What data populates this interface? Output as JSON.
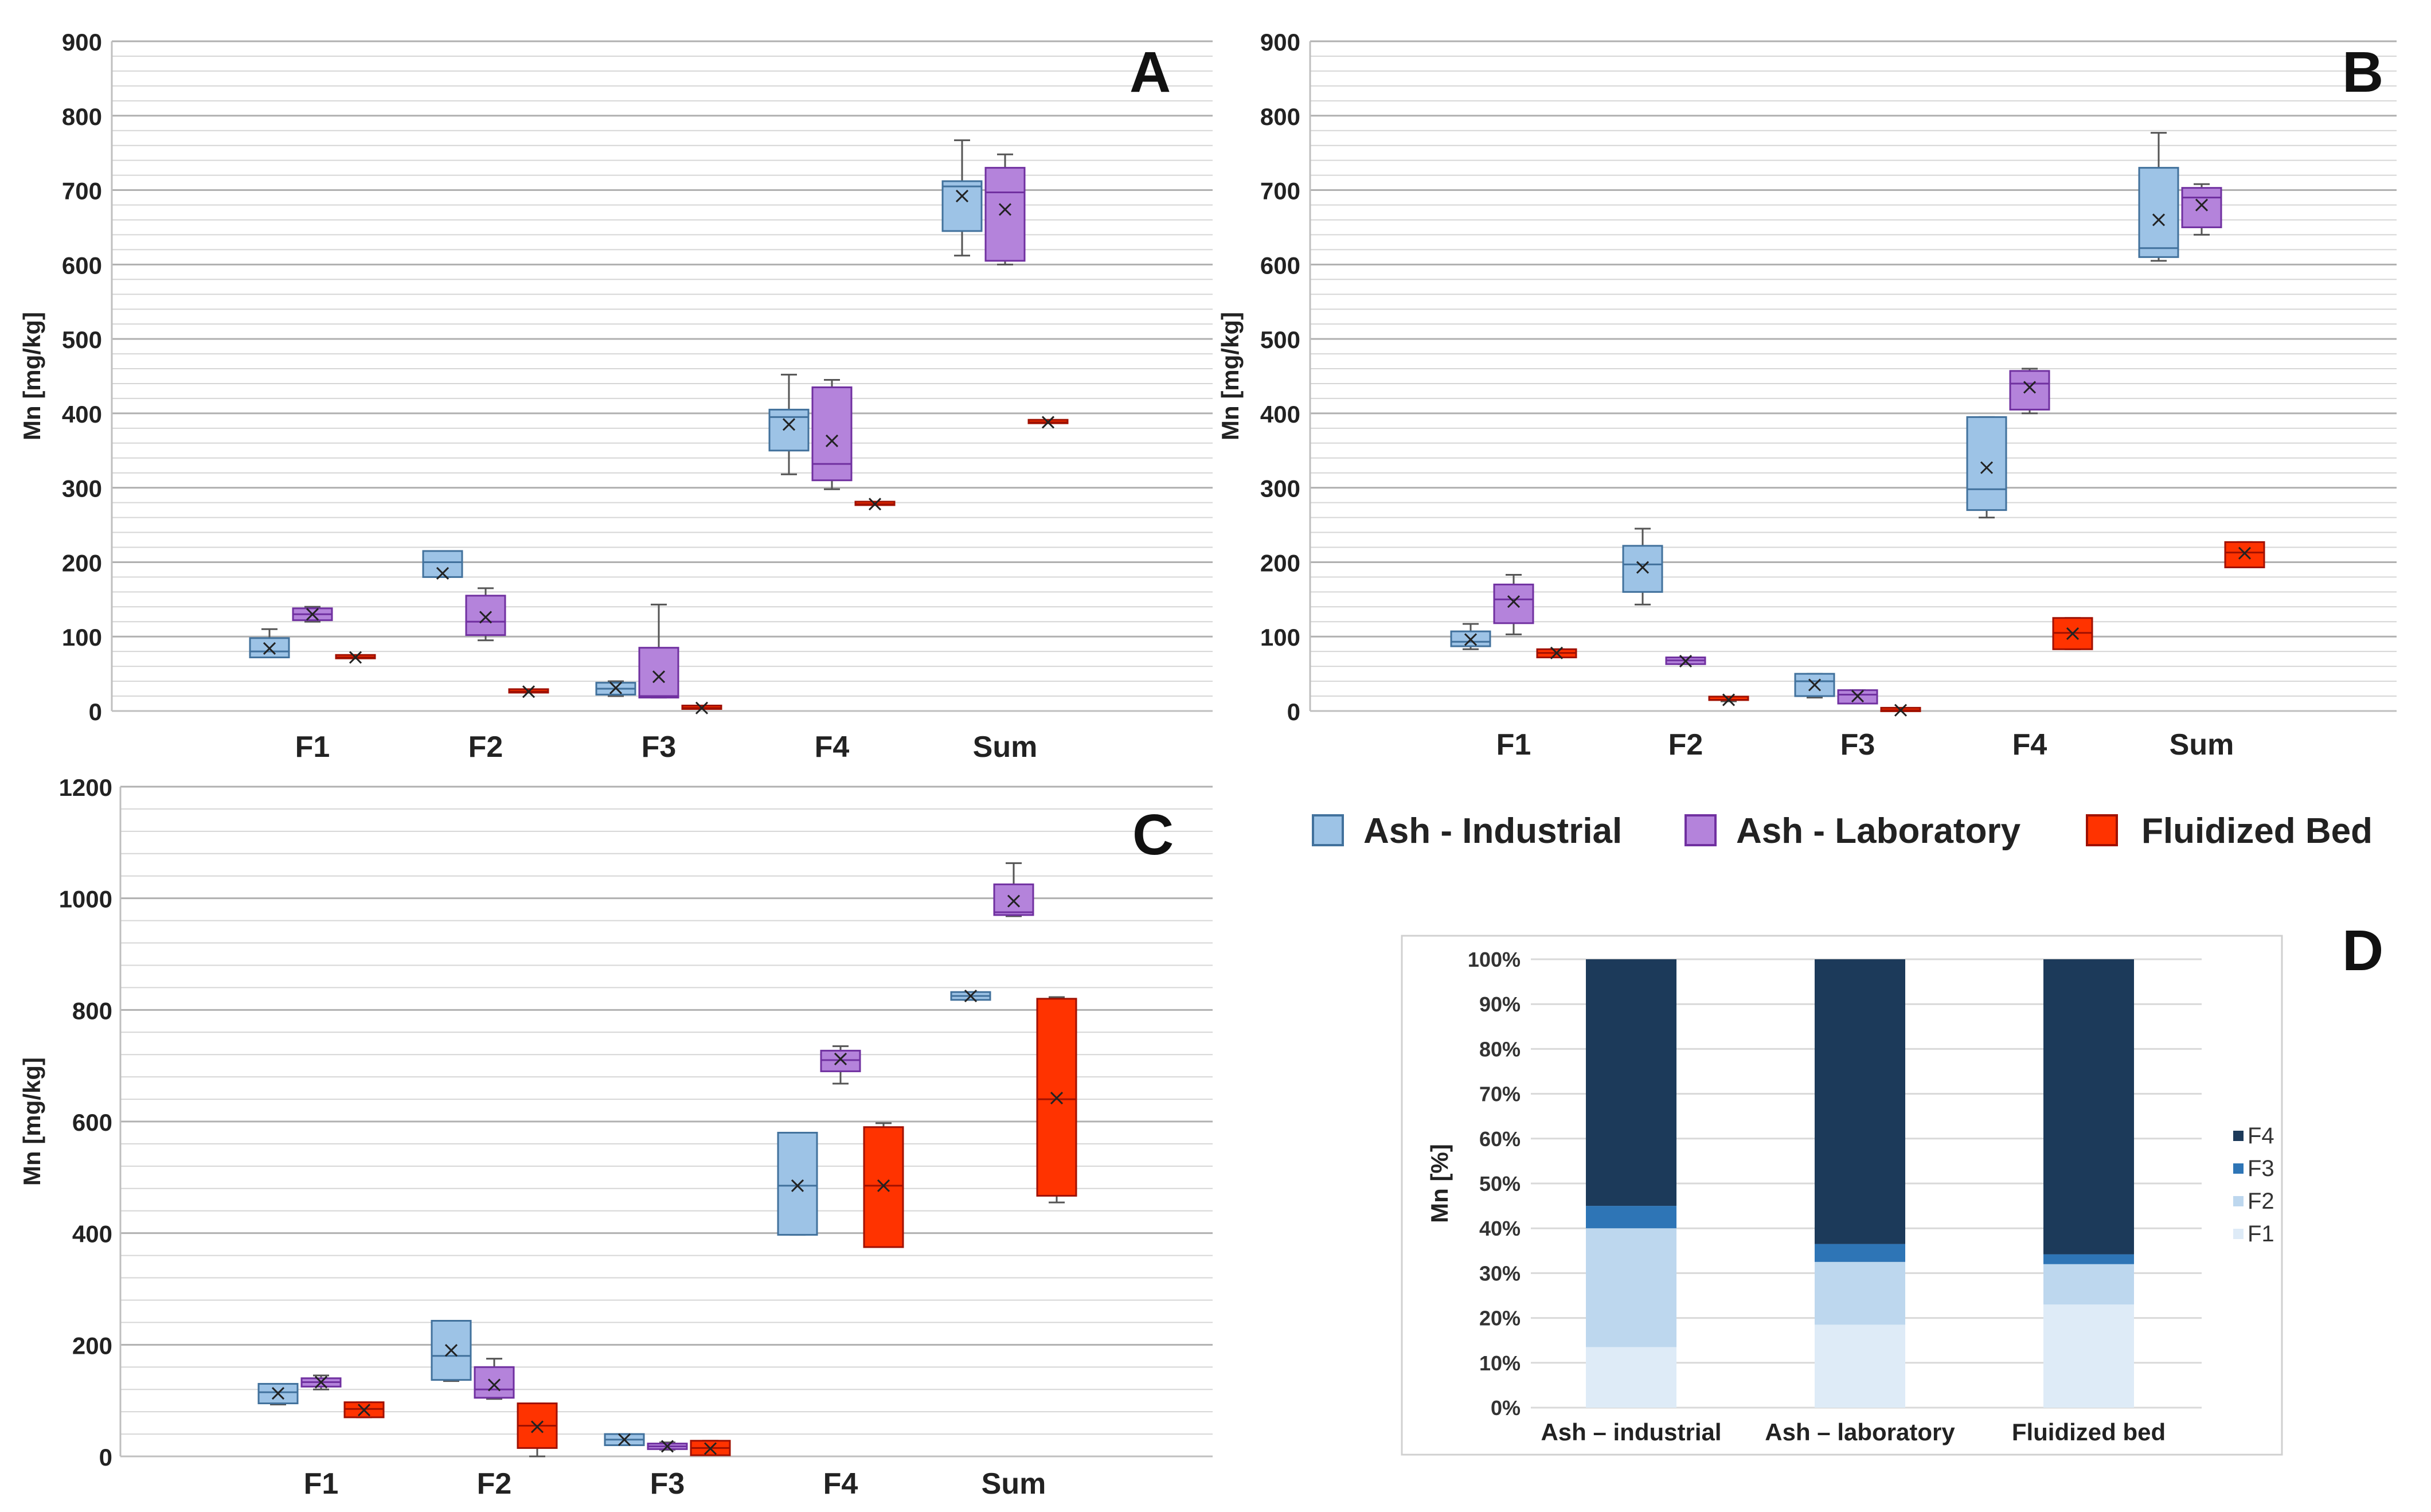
{
  "colors": {
    "ash_industrial": "#9dc3e6",
    "ash_industrial_stroke": "#41719c",
    "ash_laboratory": "#b483db",
    "ash_laboratory_stroke": "#7030a0",
    "fluidized_bed": "#ff3300",
    "fluidized_bed_stroke": "#a01000",
    "F4": "#1c3a5a",
    "F3": "#2e75b6",
    "F2": "#bdd7ee",
    "F1": "#deebf7"
  },
  "legend": {
    "ash_industrial": "Ash - Industrial",
    "ash_laboratory": "Ash - Laboratory",
    "fluidized_bed": "Fluidized Bed"
  },
  "chart_data": [
    {
      "panel": "A",
      "type": "boxplot",
      "ylabel": "Mn [mg/kg]",
      "ylim": [
        0,
        900
      ],
      "ytick_labels": [
        "0",
        "100",
        "200",
        "300",
        "400",
        "500",
        "600",
        "700",
        "800",
        "900"
      ],
      "categories": [
        "F1",
        "F2",
        "F3",
        "F4",
        "Sum"
      ],
      "series": [
        {
          "name": "Ash - Industrial",
          "key": "ash_industrial",
          "boxes": [
            {
              "min": 72,
              "q1": 72,
              "median": 80,
              "q3": 98,
              "max": 110,
              "mean": 84
            },
            {
              "min": 180,
              "q1": 180,
              "median": 200,
              "q3": 215,
              "max": 215,
              "mean": 185
            },
            {
              "min": 20,
              "q1": 22,
              "median": 30,
              "q3": 38,
              "max": 40,
              "mean": 31
            },
            {
              "min": 318,
              "q1": 350,
              "median": 395,
              "q3": 405,
              "max": 452,
              "mean": 385
            },
            {
              "min": 612,
              "q1": 645,
              "median": 705,
              "q3": 712,
              "max": 767,
              "mean": 692
            }
          ]
        },
        {
          "name": "Ash - Laboratory",
          "key": "ash_laboratory",
          "boxes": [
            {
              "min": 120,
              "q1": 122,
              "median": 130,
              "q3": 138,
              "max": 140,
              "mean": 130
            },
            {
              "min": 95,
              "q1": 102,
              "median": 120,
              "q3": 155,
              "max": 165,
              "mean": 126
            },
            {
              "min": 18,
              "q1": 18,
              "median": 20,
              "q3": 85,
              "max": 143,
              "mean": 46
            },
            {
              "min": 298,
              "q1": 310,
              "median": 332,
              "q3": 435,
              "max": 445,
              "mean": 363
            },
            {
              "min": 600,
              "q1": 605,
              "median": 697,
              "q3": 730,
              "max": 748,
              "mean": 674
            }
          ]
        },
        {
          "name": "Fluidized Bed",
          "key": "fluidized_bed",
          "boxes": [
            {
              "min": 72,
              "q1": 72,
              "median": 72,
              "q3": 73,
              "max": 73,
              "mean": 72
            },
            {
              "min": 25,
              "q1": 25,
              "median": 26,
              "q3": 27,
              "max": 27,
              "mean": 26
            },
            {
              "min": 3,
              "q1": 3,
              "median": 4,
              "q3": 5,
              "max": 5,
              "mean": 4
            },
            {
              "min": 277,
              "q1": 277,
              "median": 278,
              "q3": 279,
              "max": 279,
              "mean": 278
            },
            {
              "min": 387,
              "q1": 387,
              "median": 388,
              "q3": 389,
              "max": 389,
              "mean": 388
            }
          ]
        }
      ]
    },
    {
      "panel": "B",
      "type": "boxplot",
      "ylabel": "Mn [mg/kg]",
      "ylim": [
        0,
        900
      ],
      "ytick_labels": [
        "0",
        "100",
        "200",
        "300",
        "400",
        "500",
        "600",
        "700",
        "800",
        "900"
      ],
      "categories": [
        "F1",
        "F2",
        "F3",
        "F4",
        "Sum"
      ],
      "series": [
        {
          "name": "Ash - Industrial",
          "key": "ash_industrial",
          "boxes": [
            {
              "min": 83,
              "q1": 87,
              "median": 93,
              "q3": 107,
              "max": 117,
              "mean": 96
            },
            {
              "min": 143,
              "q1": 160,
              "median": 197,
              "q3": 222,
              "max": 245,
              "mean": 193
            },
            {
              "min": 18,
              "q1": 20,
              "median": 40,
              "q3": 50,
              "max": 50,
              "mean": 35
            },
            {
              "min": 260,
              "q1": 270,
              "median": 298,
              "q3": 395,
              "max": 395,
              "mean": 327
            },
            {
              "min": 605,
              "q1": 610,
              "median": 622,
              "q3": 730,
              "max": 777,
              "mean": 660
            }
          ]
        },
        {
          "name": "Ash - Laboratory",
          "key": "ash_laboratory",
          "boxes": [
            {
              "min": 103,
              "q1": 118,
              "median": 150,
              "q3": 170,
              "max": 183,
              "mean": 147
            },
            {
              "min": 63,
              "q1": 63,
              "median": 68,
              "q3": 72,
              "max": 72,
              "mean": 67
            },
            {
              "min": 10,
              "q1": 10,
              "median": 22,
              "q3": 28,
              "max": 28,
              "mean": 20
            },
            {
              "min": 400,
              "q1": 405,
              "median": 440,
              "q3": 457,
              "max": 460,
              "mean": 435
            },
            {
              "min": 640,
              "q1": 650,
              "median": 690,
              "q3": 703,
              "max": 708,
              "mean": 680
            }
          ]
        },
        {
          "name": "Fluidized Bed",
          "key": "fluidized_bed",
          "boxes": [
            {
              "min": 72,
              "q1": 72,
              "median": 78,
              "q3": 83,
              "max": 83,
              "mean": 78
            },
            {
              "min": 13,
              "q1": 13,
              "median": 15,
              "q3": 17,
              "max": 17,
              "mean": 15
            },
            {
              "min": 0,
              "q1": 0,
              "median": 1,
              "q3": 2,
              "max": 2,
              "mean": 1
            },
            {
              "min": 83,
              "q1": 83,
              "median": 105,
              "q3": 125,
              "max": 125,
              "mean": 104
            },
            {
              "min": 193,
              "q1": 193,
              "median": 213,
              "q3": 227,
              "max": 227,
              "mean": 212
            }
          ]
        }
      ]
    },
    {
      "panel": "C",
      "type": "boxplot",
      "ylabel": "Mn [mg/kg]",
      "ylim": [
        0,
        1200
      ],
      "ytick_labels": [
        "0",
        "200",
        "400",
        "600",
        "800",
        "1000",
        "1200"
      ],
      "categories": [
        "F1",
        "F2",
        "F3",
        "F4",
        "Sum"
      ],
      "series": [
        {
          "name": "Ash - Industrial",
          "key": "ash_industrial",
          "boxes": [
            {
              "min": 93,
              "q1": 95,
              "median": 115,
              "q3": 130,
              "max": 130,
              "mean": 113
            },
            {
              "min": 135,
              "q1": 137,
              "median": 180,
              "q3": 243,
              "max": 243,
              "mean": 190
            },
            {
              "min": 20,
              "q1": 20,
              "median": 30,
              "q3": 40,
              "max": 40,
              "mean": 30
            },
            {
              "min": 397,
              "q1": 397,
              "median": 485,
              "q3": 580,
              "max": 580,
              "mean": 485
            },
            {
              "min": 818,
              "q1": 818,
              "median": 825,
              "q3": 832,
              "max": 832,
              "mean": 825
            }
          ]
        },
        {
          "name": "Ash - Laboratory",
          "key": "ash_laboratory",
          "boxes": [
            {
              "min": 120,
              "q1": 125,
              "median": 133,
              "q3": 140,
              "max": 145,
              "mean": 133
            },
            {
              "min": 103,
              "q1": 105,
              "median": 120,
              "q3": 160,
              "max": 175,
              "mean": 128
            },
            {
              "min": 12,
              "q1": 13,
              "median": 18,
              "q3": 23,
              "max": 25,
              "mean": 18
            },
            {
              "min": 668,
              "q1": 690,
              "median": 710,
              "q3": 727,
              "max": 735,
              "mean": 712
            },
            {
              "min": 968,
              "q1": 970,
              "median": 975,
              "q3": 1025,
              "max": 1063,
              "mean": 995
            }
          ]
        },
        {
          "name": "Fluidized Bed",
          "key": "fluidized_bed",
          "boxes": [
            {
              "min": 70,
              "q1": 70,
              "median": 85,
              "q3": 97,
              "max": 97,
              "mean": 83
            },
            {
              "min": 0,
              "q1": 15,
              "median": 55,
              "q3": 95,
              "max": 95,
              "mean": 53
            },
            {
              "min": 2,
              "q1": 2,
              "median": 15,
              "q3": 28,
              "max": 28,
              "mean": 14
            },
            {
              "min": 375,
              "q1": 375,
              "median": 485,
              "q3": 590,
              "max": 597,
              "mean": 485
            },
            {
              "min": 455,
              "q1": 467,
              "median": 640,
              "q3": 820,
              "max": 823,
              "mean": 642
            }
          ]
        }
      ]
    },
    {
      "panel": "D",
      "type": "stacked_bar",
      "ylabel": "Mn [%]",
      "ylim": [
        0,
        100
      ],
      "ytick_labels": [
        "0%",
        "10%",
        "20%",
        "30%",
        "40%",
        "50%",
        "60%",
        "70%",
        "80%",
        "90%",
        "100%"
      ],
      "categories": [
        "Ash – industrial",
        "Ash – laboratory",
        "Fluidized bed"
      ],
      "legend_order": [
        "F4",
        "F3",
        "F2",
        "F1"
      ],
      "series": [
        {
          "name": "F1",
          "values": [
            13.5,
            18.5,
            23
          ]
        },
        {
          "name": "F2",
          "values": [
            26.5,
            14,
            9
          ]
        },
        {
          "name": "F3",
          "values": [
            5,
            4,
            2.2
          ]
        },
        {
          "name": "F4",
          "values": [
            55,
            63.5,
            65.8
          ]
        }
      ]
    }
  ]
}
